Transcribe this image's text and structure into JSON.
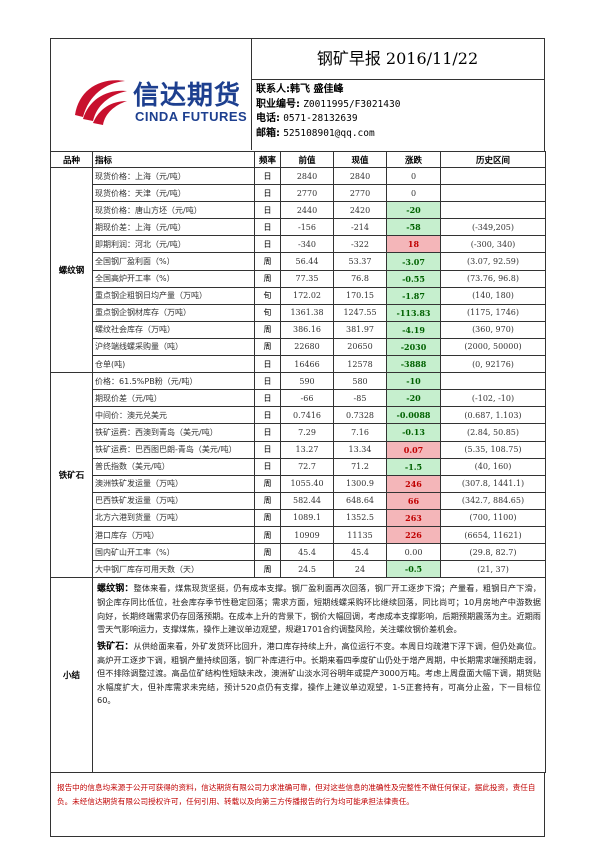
{
  "header": {
    "logo_cn": "信达期货",
    "logo_en": "CINDA FUTURES",
    "title": "钢矿早报 2016/11/22",
    "contact_label": "联系人:",
    "contact_names": "韩飞 盛佳峰",
    "license_label": "职业编号:",
    "license_value": "Z0011995/F3021430",
    "phone_label": "电话:",
    "phone_value": "0571-28132639",
    "email_label": "邮箱:",
    "email_value": "525108901@qq.com"
  },
  "columns": [
    "品种",
    "指标",
    "频率",
    "前值",
    "现值",
    "涨跌",
    "历史区间"
  ],
  "groups": [
    {
      "name": "螺纹钢",
      "rows": [
        {
          "ind": "现货价格：上海（元/吨）",
          "freq": "日",
          "prev": "2840",
          "cur": "2840",
          "chg": "0",
          "dir": "zero",
          "range": ""
        },
        {
          "ind": "现货价格：天津（元/吨）",
          "freq": "日",
          "prev": "2770",
          "cur": "2770",
          "chg": "0",
          "dir": "zero",
          "range": ""
        },
        {
          "ind": "现货价格：唐山方坯（元/吨）",
          "freq": "日",
          "prev": "2440",
          "cur": "2420",
          "chg": "-20",
          "dir": "neg",
          "range": ""
        },
        {
          "ind": "期现价差：上海（元/吨）",
          "freq": "日",
          "prev": "-156",
          "cur": "-214",
          "chg": "-58",
          "dir": "neg",
          "range": "(-349,205)"
        },
        {
          "ind": "即期利润：河北（元/吨）",
          "freq": "日",
          "prev": "-340",
          "cur": "-322",
          "chg": "18",
          "dir": "pos",
          "range": "(-300, 340)"
        },
        {
          "ind": "全国钢厂盈利面（%）",
          "freq": "周",
          "prev": "56.44",
          "cur": "53.37",
          "chg": "-3.07",
          "dir": "neg",
          "range": "(3.07, 92.59)"
        },
        {
          "ind": "全国高炉开工率（%）",
          "freq": "周",
          "prev": "77.35",
          "cur": "76.8",
          "chg": "-0.55",
          "dir": "neg",
          "range": "(73.76, 96.8)"
        },
        {
          "ind": "重点钢企粗钢日均产量（万吨）",
          "freq": "旬",
          "prev": "172.02",
          "cur": "170.15",
          "chg": "-1.87",
          "dir": "neg",
          "range": "(140, 180)"
        },
        {
          "ind": "重点钢企钢材库存（万吨）",
          "freq": "旬",
          "prev": "1361.38",
          "cur": "1247.55",
          "chg": "-113.83",
          "dir": "neg",
          "range": "(1175, 1746)"
        },
        {
          "ind": "螺纹社会库存（万吨）",
          "freq": "周",
          "prev": "386.16",
          "cur": "381.97",
          "chg": "-4.19",
          "dir": "neg",
          "range": "(360, 970)"
        },
        {
          "ind": "沪终端线螺采购量（吨）",
          "freq": "周",
          "prev": "22680",
          "cur": "20650",
          "chg": "-2030",
          "dir": "neg",
          "range": "(2000, 50000)"
        },
        {
          "ind": "仓单(吨)",
          "freq": "日",
          "prev": "16466",
          "cur": "12578",
          "chg": "-3888",
          "dir": "neg",
          "range": "(0, 92176)"
        }
      ]
    },
    {
      "name": "铁矿石",
      "rows": [
        {
          "ind": "价格：61.5%PB粉（元/吨）",
          "freq": "日",
          "prev": "590",
          "cur": "580",
          "chg": "-10",
          "dir": "neg",
          "range": ""
        },
        {
          "ind": "期现价差（元/吨）",
          "freq": "日",
          "prev": "-66",
          "cur": "-85",
          "chg": "-20",
          "dir": "neg",
          "range": "(-102, -10)"
        },
        {
          "ind": "中间价：澳元兑美元",
          "freq": "日",
          "prev": "0.7416",
          "cur": "0.7328",
          "chg": "-0.0088",
          "dir": "neg",
          "range": "(0.687, 1.103)"
        },
        {
          "ind": "铁矿运费：西澳到青岛（美元/吨）",
          "freq": "日",
          "prev": "7.29",
          "cur": "7.16",
          "chg": "-0.13",
          "dir": "neg",
          "range": "(2.84, 50.85)"
        },
        {
          "ind": "铁矿运费：巴西图巴朗-青岛（美元/吨）",
          "freq": "日",
          "prev": "13.27",
          "cur": "13.34",
          "chg": "0.07",
          "dir": "pos",
          "range": "(5.35, 108.75)"
        },
        {
          "ind": "普氏指数（美元/吨）",
          "freq": "日",
          "prev": "72.7",
          "cur": "71.2",
          "chg": "-1.5",
          "dir": "neg",
          "range": "(40, 160)"
        },
        {
          "ind": "澳洲铁矿发运量（万吨）",
          "freq": "周",
          "prev": "1055.40",
          "cur": "1300.9",
          "chg": "246",
          "dir": "pos",
          "range": "(307.8, 1441.1)"
        },
        {
          "ind": "巴西铁矿发运量（万吨）",
          "freq": "周",
          "prev": "582.44",
          "cur": "648.64",
          "chg": "66",
          "dir": "pos",
          "range": "(342.7, 884.65)"
        },
        {
          "ind": "北方六港到货量（万吨）",
          "freq": "周",
          "prev": "1089.1",
          "cur": "1352.5",
          "chg": "263",
          "dir": "pos",
          "range": "(700, 1100)"
        },
        {
          "ind": "港口库存（万吨）",
          "freq": "周",
          "prev": "10909",
          "cur": "11135",
          "chg": "226",
          "dir": "pos",
          "range": "(6654, 11621)"
        },
        {
          "ind": "国内矿山开工率（%）",
          "freq": "周",
          "prev": "45.4",
          "cur": "45.4",
          "chg": "0.00",
          "dir": "zero",
          "range": "(29.8, 82.7)"
        },
        {
          "ind": "大中钢厂库存可用天数（天）",
          "freq": "周",
          "prev": "24.5",
          "cur": "24",
          "chg": "-0.5",
          "dir": "neg",
          "range": "(21, 37)"
        }
      ]
    }
  ],
  "summary": {
    "label": "小结",
    "rebar_title": "螺纹钢：",
    "rebar_text": "整体来看，煤焦现货坚挺，仍有成本支撑。钢厂盈利面再次回落，钢厂开工逐步下滑；产量看，粗钢日产下滑，钢企库存同比低位，社会库存季节性稳定回落；需求方面，短期线螺采购环比继续回落，同比尚可；10月房地产中游数据向好，长期终端需求仍存回落预期。在成本上升的背景下，钢价大幅回调，考虑成本支撑影响，后期预期震荡为主。近期雨雪天气影响运力，支撑煤焦，操作上建议单边观望，规避1701合约调整风险，关注螺纹钢价差机会。",
    "ore_title": "铁矿石：",
    "ore_text": "从供给面来看，外矿发货环比回升，港口库存持续上升，高位运行不变。本周日均疏港下浮下调，但仍处高位。高炉开工逐步下调，粗钢产量持续回落，钢厂补库进行中。长期来看四季度矿山仍处于增产周期，中长期需求端预期走弱，但不排除调整过渡。高品位矿结构性短缺未改，澳洲矿山淡水河谷明年或提产3000万吨。考虑上周盘面大幅下调，期货贴水幅度扩大，但补库需求未完结，预计520点仍有支撑，操作上建议单边观望，1-5正套持有，可高分止盈，下一目标位60。"
  },
  "footer": {
    "text": "报告中的信息均来源于公开可获得的资料，信达期货有限公司力求准确可靠，但对这些信息的准确性及完整性不做任何保证，据此投资，责任自负。未经信达期货有限公司授权许可，任何引用、转载以及向第三方传播报告的行为均可能承担法律责任。"
  }
}
